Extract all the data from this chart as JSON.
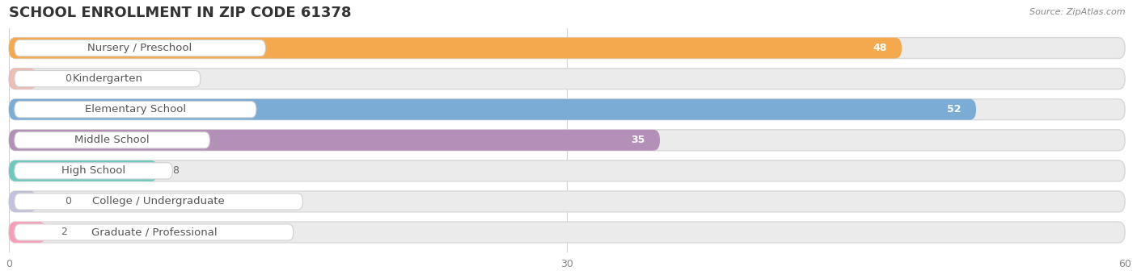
{
  "title": "SCHOOL ENROLLMENT IN ZIP CODE 61378",
  "source": "Source: ZipAtlas.com",
  "categories": [
    "Nursery / Preschool",
    "Kindergarten",
    "Elementary School",
    "Middle School",
    "High School",
    "College / Undergraduate",
    "Graduate / Professional"
  ],
  "values": [
    48,
    0,
    52,
    35,
    8,
    0,
    2
  ],
  "bar_colors": [
    "#f5a94e",
    "#f0a090",
    "#7aacd6",
    "#b490b8",
    "#6dc8be",
    "#a8a8d8",
    "#f5a0b8"
  ],
  "xlim": [
    0,
    60
  ],
  "xticks": [
    0,
    30,
    60
  ],
  "background_color": "#ffffff",
  "bar_bg_color": "#ebebeb",
  "title_fontsize": 13,
  "label_fontsize": 9.5,
  "value_fontsize": 9
}
